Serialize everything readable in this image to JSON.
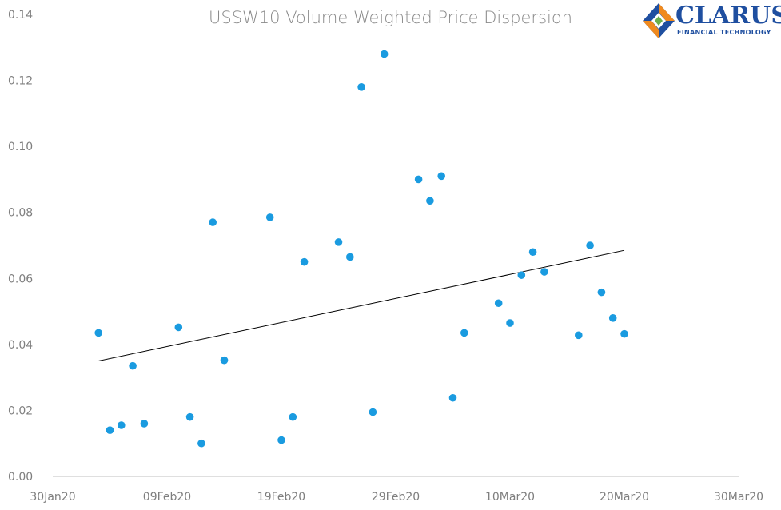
{
  "chart_data": {
    "type": "scatter",
    "title": "USSW10 Volume Weighted Price Dispersion",
    "x_axis": {
      "type": "date",
      "range": [
        "2020-01-30",
        "2020-03-30"
      ],
      "tick_labels": [
        "30Jan20",
        "09Feb20",
        "19Feb20",
        "29Feb20",
        "10Mar20",
        "20Mar20",
        "30Mar20"
      ]
    },
    "y_axis": {
      "range": [
        0,
        0.14
      ],
      "tick_labels": [
        "0.00",
        "0.02",
        "0.04",
        "0.06",
        "0.08",
        "0.10",
        "0.12",
        "0.14"
      ]
    },
    "grid": false,
    "marker_color": "#1a9be0",
    "trendline": {
      "type": "linear",
      "color": "#000000",
      "points": [
        [
          "2020-02-03",
          0.035
        ],
        [
          "2020-03-20",
          0.0685
        ]
      ]
    },
    "points": [
      [
        "2020-02-03",
        0.0435
      ],
      [
        "2020-02-04",
        0.014
      ],
      [
        "2020-02-05",
        0.0155
      ],
      [
        "2020-02-06",
        0.0335
      ],
      [
        "2020-02-07",
        0.016
      ],
      [
        "2020-02-10",
        0.0452
      ],
      [
        "2020-02-11",
        0.018
      ],
      [
        "2020-02-12",
        0.01
      ],
      [
        "2020-02-13",
        0.077
      ],
      [
        "2020-02-14",
        0.0352
      ],
      [
        "2020-02-18",
        0.0785
      ],
      [
        "2020-02-19",
        0.011
      ],
      [
        "2020-02-20",
        0.018
      ],
      [
        "2020-02-21",
        0.065
      ],
      [
        "2020-02-24",
        0.071
      ],
      [
        "2020-02-25",
        0.0665
      ],
      [
        "2020-02-26",
        0.118
      ],
      [
        "2020-02-27",
        0.0195
      ],
      [
        "2020-02-28",
        0.128
      ],
      [
        "2020-03-02",
        0.09
      ],
      [
        "2020-03-03",
        0.0835
      ],
      [
        "2020-03-04",
        0.091
      ],
      [
        "2020-03-05",
        0.0238
      ],
      [
        "2020-03-06",
        0.0435
      ],
      [
        "2020-03-09",
        0.0525
      ],
      [
        "2020-03-10",
        0.0465
      ],
      [
        "2020-03-11",
        0.061
      ],
      [
        "2020-03-12",
        0.068
      ],
      [
        "2020-03-13",
        0.062
      ],
      [
        "2020-03-16",
        0.0428
      ],
      [
        "2020-03-17",
        0.07
      ],
      [
        "2020-03-18",
        0.0558
      ],
      [
        "2020-03-19",
        0.048
      ],
      [
        "2020-03-20",
        0.0432
      ]
    ]
  },
  "logo": {
    "name": "CLARUS",
    "tagline": "FINANCIAL TECHNOLOGY",
    "colors": {
      "orange": "#f08a1e",
      "blue": "#1f4fa0",
      "green": "#6ab04c"
    }
  }
}
